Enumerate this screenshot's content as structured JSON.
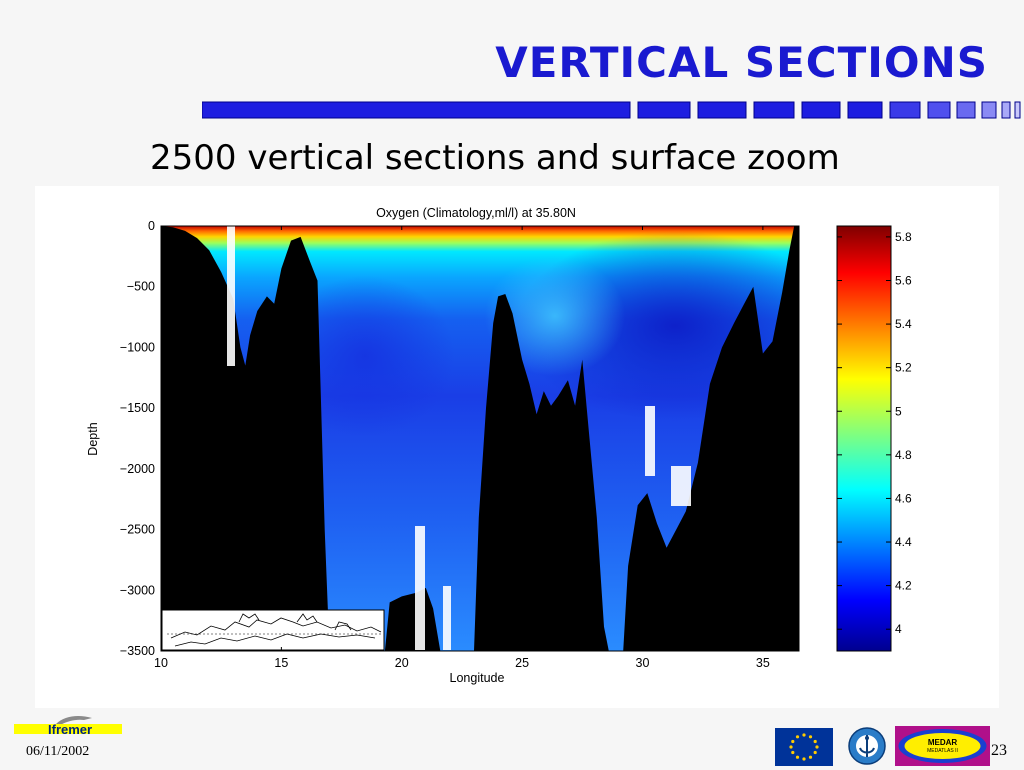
{
  "slide": {
    "title": "VERTICAL SECTIONS",
    "subtitle": "2500 vertical sections and surface zoom",
    "date": "06/11/2002",
    "page_number": "23",
    "title_color": "#1a1ad0",
    "bar_color": "#1e1ee0"
  },
  "logos": {
    "ifremer": "Ifremer",
    "medar_line1": "MEDAR",
    "medar_line2": "MEDATLAS II",
    "eu_flag_icon": "eu-flag-icon",
    "ioc_icon": "ioc-logo-icon"
  },
  "chart_data": {
    "type": "heatmap",
    "title": "Oxygen (Climatology,ml/l) at 35.80N",
    "xlabel": "Longitude",
    "ylabel": "Depth",
    "xlim": [
      10,
      36.5
    ],
    "ylim": [
      -3500,
      0
    ],
    "x_ticks": [
      10,
      15,
      20,
      25,
      30,
      35
    ],
    "y_ticks": [
      0,
      -500,
      -1000,
      -1500,
      -2000,
      -2500,
      -3000,
      -3500
    ],
    "x_tick_labels": [
      "10",
      "15",
      "20",
      "25",
      "30",
      "35"
    ],
    "y_tick_labels": [
      "0",
      "−500",
      "−1000",
      "−1500",
      "−2000",
      "−2500",
      "−3000",
      "−3500"
    ],
    "colorbar": {
      "min": 3.9,
      "max": 5.85,
      "ticks": [
        5.8,
        5.6,
        5.4,
        5.2,
        5,
        4.8,
        4.6,
        4.4,
        4.2,
        4
      ],
      "tick_labels": [
        "5.8",
        "5.6",
        "5.4",
        "5.2",
        "5",
        "4.8",
        "4.6",
        "4.4",
        "4.2",
        "4"
      ],
      "colormap": "jet"
    },
    "bathymetry": [
      [
        10,
        0
      ],
      [
        10.5,
        -10
      ],
      [
        11.0,
        -40
      ],
      [
        11.5,
        -100
      ],
      [
        12.0,
        -200
      ],
      [
        12.5,
        -380
      ],
      [
        13.0,
        -600
      ],
      [
        13.3,
        -1000
      ],
      [
        13.5,
        -1150
      ],
      [
        13.7,
        -900
      ],
      [
        14.0,
        -700
      ],
      [
        14.4,
        -580
      ],
      [
        14.7,
        -640
      ],
      [
        15.0,
        -350
      ],
      [
        15.4,
        -120
      ],
      [
        15.8,
        -90
      ],
      [
        16.2,
        -300
      ],
      [
        16.5,
        -450
      ],
      [
        16.8,
        -2500
      ],
      [
        17.0,
        -3500
      ],
      [
        19.3,
        -3500
      ],
      [
        19.5,
        -3100
      ],
      [
        20.0,
        -3050
      ],
      [
        20.6,
        -3020
      ],
      [
        21.0,
        -2980
      ],
      [
        21.3,
        -3150
      ],
      [
        21.6,
        -3500
      ],
      [
        23.0,
        -3500
      ],
      [
        23.2,
        -2400
      ],
      [
        23.5,
        -1500
      ],
      [
        23.8,
        -800
      ],
      [
        24.0,
        -580
      ],
      [
        24.3,
        -560
      ],
      [
        24.6,
        -720
      ],
      [
        25.0,
        -1100
      ],
      [
        25.3,
        -1300
      ],
      [
        25.6,
        -1550
      ],
      [
        25.9,
        -1360
      ],
      [
        26.2,
        -1480
      ],
      [
        26.5,
        -1400
      ],
      [
        26.9,
        -1270
      ],
      [
        27.2,
        -1480
      ],
      [
        27.5,
        -1100
      ],
      [
        27.8,
        -1750
      ],
      [
        28.1,
        -2400
      ],
      [
        28.4,
        -3300
      ],
      [
        28.6,
        -3500
      ],
      [
        29.2,
        -3500
      ],
      [
        29.4,
        -2800
      ],
      [
        29.8,
        -2300
      ],
      [
        30.2,
        -2200
      ],
      [
        30.6,
        -2450
      ],
      [
        31.0,
        -2650
      ],
      [
        31.4,
        -2500
      ],
      [
        31.8,
        -2350
      ],
      [
        32.3,
        -1950
      ],
      [
        32.8,
        -1300
      ],
      [
        33.3,
        -1000
      ],
      [
        33.8,
        -800
      ],
      [
        34.2,
        -650
      ],
      [
        34.6,
        -500
      ],
      [
        35.0,
        -1050
      ],
      [
        35.4,
        -950
      ],
      [
        35.8,
        -550
      ],
      [
        36.1,
        -200
      ],
      [
        36.3,
        0
      ],
      [
        36.5,
        0
      ]
    ],
    "inset_map": "Mediterranean basin coastline with 35.80N section line"
  }
}
